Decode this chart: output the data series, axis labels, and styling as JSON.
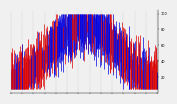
{
  "background_color": "#f0f0f0",
  "grid_color": "#888888",
  "ylim": [
    0,
    105
  ],
  "yticks": [
    20,
    40,
    60,
    80,
    100
  ],
  "num_points": 365,
  "seed": 17,
  "blue_color": "#0000dd",
  "red_color": "#dd0000",
  "n_months": 13,
  "month_step": 28
}
